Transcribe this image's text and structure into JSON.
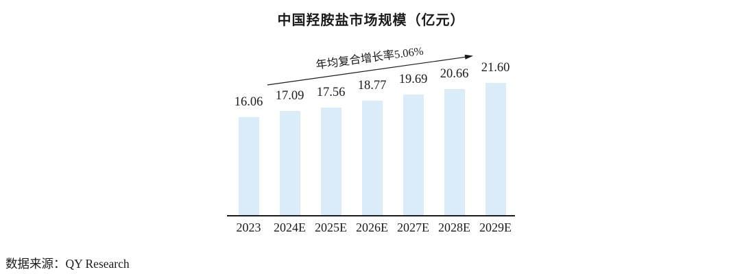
{
  "title": "中国羟胺盐市场规模（亿元）",
  "annotation": {
    "cagr_label": "年均复合增长率5.06%"
  },
  "source": {
    "label": "数据来源：QY Research"
  },
  "colors": {
    "bar_fill": "#daecf8",
    "axis": "#1a1a1a",
    "text": "#1a1a1a"
  },
  "chart_data": {
    "type": "bar",
    "title": "中国羟胺盐市场规模（亿元）",
    "categories": [
      "2023",
      "2024E",
      "2025E",
      "2026E",
      "2027E",
      "2028E",
      "2029E"
    ],
    "values": [
      16.06,
      17.09,
      17.56,
      18.77,
      19.69,
      20.66,
      21.6
    ],
    "bar_labels": [
      "16.06",
      "17.09",
      "17.56",
      "18.77",
      "19.69",
      "20.66",
      "21.60"
    ],
    "annotation": "年均复合增长率5.06%",
    "xlabel": "",
    "ylabel": "",
    "ylim": [
      0,
      24
    ],
    "grid": false,
    "legend": "none"
  }
}
